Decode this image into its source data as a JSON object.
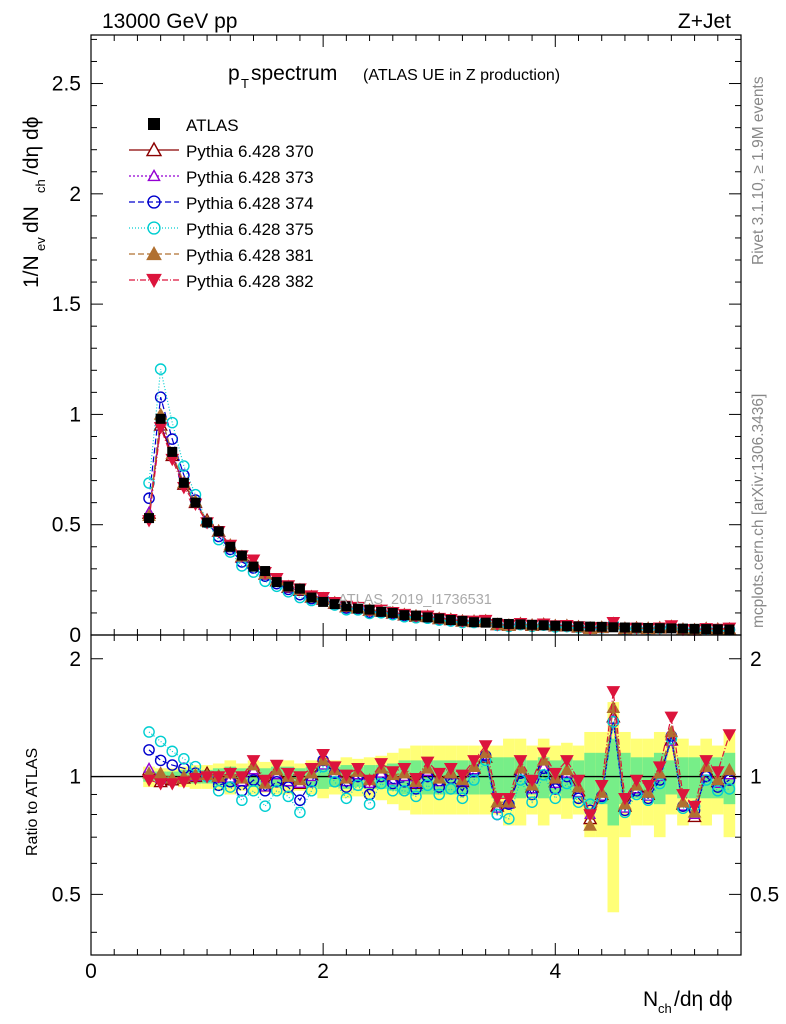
{
  "header": {
    "energy": "13000 GeV pp",
    "process": "Z+Jet"
  },
  "side": {
    "rivet": "Rivet 3.1.10, ≥ 1.9M events",
    "mcplots": "mcplots.cern.ch [arXiv:1306.3436]"
  },
  "chart_data": {
    "type": "scatter",
    "title_main": "p",
    "title_sub": "T",
    "title_rest": " spectrum",
    "title_note": "(ATLAS UE in Z production)",
    "watermark": "ATLAS_2019_I1736531",
    "xlabel": "N",
    "xlabel_sub": "ch",
    "xlabel_rest": "/dη dϕ",
    "ylabel": "1/N",
    "ylabel_sub1": "ev",
    "ylabel_mid": " dN",
    "ylabel_sub2": "ch",
    "ylabel_rest": "/dη dϕ",
    "ratio_ylabel": "Ratio to ATLAS",
    "xlim": [
      0,
      5.6
    ],
    "ylim": [
      0,
      2.72
    ],
    "ratio_ylim": [
      0.35,
      2.3
    ],
    "xticks": [
      {
        "v": 0,
        "label": "0"
      },
      {
        "v": 2,
        "label": "2"
      },
      {
        "v": 4,
        "label": "4"
      }
    ],
    "yticks": [
      {
        "v": 0,
        "label": "0"
      },
      {
        "v": 0.5,
        "label": "0.5"
      },
      {
        "v": 1,
        "label": "1"
      },
      {
        "v": 1.5,
        "label": "1.5"
      },
      {
        "v": 2,
        "label": "2"
      },
      {
        "v": 2.5,
        "label": "2.5"
      }
    ],
    "ratio_yticks": [
      {
        "v": 0.5,
        "label": "0.5"
      },
      {
        "v": 1,
        "label": "1"
      },
      {
        "v": 2,
        "label": "2"
      }
    ],
    "x": [
      0.5,
      0.6,
      0.7,
      0.8,
      0.9,
      1.0,
      1.1,
      1.2,
      1.3,
      1.4,
      1.5,
      1.6,
      1.7,
      1.8,
      1.9,
      2.0,
      2.1,
      2.2,
      2.3,
      2.4,
      2.5,
      2.6,
      2.7,
      2.8,
      2.9,
      3.0,
      3.1,
      3.2,
      3.3,
      3.4,
      3.5,
      3.6,
      3.7,
      3.8,
      3.9,
      4.0,
      4.1,
      4.2,
      4.3,
      4.4,
      4.5,
      4.6,
      4.7,
      4.8,
      4.9,
      5.0,
      5.1,
      5.2,
      5.3,
      5.4,
      5.5
    ],
    "data": {
      "label": "ATLAS",
      "values": [
        0.53,
        0.98,
        0.83,
        0.69,
        0.6,
        0.51,
        0.47,
        0.4,
        0.36,
        0.31,
        0.29,
        0.24,
        0.22,
        0.21,
        0.17,
        0.15,
        0.14,
        0.13,
        0.12,
        0.115,
        0.105,
        0.1,
        0.09,
        0.088,
        0.08,
        0.075,
        0.068,
        0.064,
        0.058,
        0.056,
        0.055,
        0.05,
        0.048,
        0.046,
        0.044,
        0.042,
        0.04,
        0.039,
        0.038,
        0.037,
        0.035,
        0.034,
        0.033,
        0.032,
        0.031,
        0.03,
        0.029,
        0.028,
        0.027,
        0.026,
        0.025
      ],
      "band_yellow": [
        0.06,
        0.05,
        0.05,
        0.06,
        0.07,
        0.07,
        0.08,
        0.1,
        0.08,
        0.1,
        0.09,
        0.1,
        0.1,
        0.08,
        0.1,
        0.12,
        0.1,
        0.12,
        0.11,
        0.12,
        0.13,
        0.15,
        0.18,
        0.2,
        0.2,
        0.2,
        0.2,
        0.2,
        0.2,
        0.2,
        0.2,
        0.25,
        0.25,
        0.2,
        0.25,
        0.2,
        0.22,
        0.2,
        0.3,
        0.3,
        0.55,
        0.3,
        0.25,
        0.25,
        0.3,
        0.2,
        0.25,
        0.2,
        0.25,
        0.2,
        0.3
      ],
      "band_green": [
        0.03,
        0.03,
        0.03,
        0.04,
        0.04,
        0.04,
        0.05,
        0.06,
        0.05,
        0.06,
        0.05,
        0.06,
        0.06,
        0.05,
        0.06,
        0.07,
        0.06,
        0.07,
        0.06,
        0.07,
        0.07,
        0.08,
        0.1,
        0.1,
        0.1,
        0.1,
        0.1,
        0.1,
        0.1,
        0.1,
        0.12,
        0.12,
        0.12,
        0.1,
        0.12,
        0.1,
        0.12,
        0.1,
        0.15,
        0.15,
        0.25,
        0.15,
        0.12,
        0.12,
        0.15,
        0.1,
        0.12,
        0.12,
        0.12,
        0.12,
        0.15
      ]
    },
    "series": [
      {
        "name": "Pythia 6.428 370",
        "color": "#8b0000",
        "dash": "",
        "marker": "tri-open",
        "ratio": [
          1.04,
          0.97,
          0.98,
          0.99,
          1.0,
          1.02,
          1.0,
          1.0,
          0.98,
          1.05,
          0.95,
          1.02,
          0.98,
          0.96,
          1.01,
          1.08,
          1.03,
          0.98,
          1.02,
          0.97,
          1.03,
          0.99,
          1.01,
          0.96,
          1.04,
          0.98,
          1.02,
          0.97,
          1.05,
          1.12,
          0.84,
          0.86,
          1.04,
          0.94,
          1.07,
          0.97,
          1.03,
          0.92,
          0.78,
          0.9,
          1.42,
          0.84,
          0.94,
          0.9,
          1.01,
          1.24,
          0.85,
          0.79,
          1.04,
          0.97,
          1.02
        ]
      },
      {
        "name": "Pythia 6.428 373",
        "color": "#9400d3",
        "dash": "2,2",
        "marker": "tri-open-small",
        "ratio": [
          1.05,
          0.99,
          0.99,
          1.0,
          1.0,
          1.01,
          0.99,
          0.99,
          0.97,
          1.04,
          0.94,
          1.01,
          0.97,
          0.96,
          1.0,
          1.07,
          1.02,
          0.97,
          1.01,
          0.96,
          1.02,
          0.98,
          1.0,
          0.96,
          1.03,
          0.97,
          1.01,
          0.97,
          1.04,
          1.13,
          0.83,
          0.85,
          1.03,
          0.93,
          1.06,
          0.96,
          1.02,
          0.91,
          0.8,
          0.89,
          1.4,
          0.83,
          0.93,
          0.89,
          1.0,
          1.23,
          0.84,
          0.8,
          1.03,
          0.96,
          1.01
        ]
      },
      {
        "name": "Pythia 6.428 374",
        "color": "#0000cd",
        "dash": "6,3",
        "marker": "circle-open",
        "ratio": [
          1.17,
          1.1,
          1.07,
          1.05,
          1.02,
          1.0,
          0.95,
          0.97,
          0.92,
          0.98,
          0.92,
          0.97,
          0.94,
          0.87,
          0.97,
          1.1,
          1.02,
          0.94,
          1.0,
          0.9,
          1.0,
          0.96,
          0.97,
          0.93,
          1.0,
          0.94,
          0.99,
          0.92,
          1.03,
          1.13,
          0.8,
          0.85,
          1.02,
          0.9,
          1.05,
          0.93,
          1.0,
          0.88,
          0.82,
          0.89,
          1.38,
          0.82,
          0.92,
          0.88,
          0.98,
          1.27,
          0.84,
          0.82,
          1.0,
          0.94,
          0.98
        ]
      },
      {
        "name": "Pythia 6.428 375",
        "color": "#00ced1",
        "dash": "1,2",
        "marker": "circle-open",
        "ratio": [
          1.3,
          1.23,
          1.16,
          1.11,
          1.06,
          1.0,
          0.92,
          0.94,
          0.87,
          0.92,
          0.84,
          0.92,
          0.89,
          0.81,
          0.92,
          1.06,
          0.97,
          0.88,
          0.95,
          0.85,
          0.96,
          0.92,
          0.92,
          0.89,
          0.95,
          0.9,
          0.93,
          0.88,
          0.98,
          1.1,
          0.8,
          0.78,
          0.98,
          0.86,
          1.01,
          0.88,
          0.96,
          0.86,
          0.85,
          0.88,
          1.38,
          0.81,
          0.9,
          0.87,
          0.96,
          1.25,
          0.83,
          0.84,
          0.98,
          0.92,
          0.93
        ]
      },
      {
        "name": "Pythia 6.428 381",
        "color": "#b07030",
        "dash": "6,3",
        "marker": "tri-solid",
        "ratio": [
          1.02,
          1.02,
          0.99,
          1.0,
          1.01,
          1.01,
          1.0,
          1.02,
          0.99,
          1.07,
          0.96,
          1.04,
          1.0,
          0.98,
          1.02,
          1.1,
          1.04,
          0.99,
          1.03,
          0.98,
          1.05,
          1.01,
          1.02,
          0.97,
          1.05,
          0.99,
          1.02,
          0.98,
          1.06,
          1.15,
          0.86,
          0.86,
          1.05,
          0.95,
          1.1,
          0.99,
          1.04,
          0.94,
          0.75,
          0.91,
          1.5,
          0.85,
          0.95,
          0.91,
          1.02,
          1.3,
          0.86,
          0.81,
          1.06,
          0.98,
          1.04
        ]
      },
      {
        "name": "Pythia 6.428 382",
        "color": "#dc143c",
        "dash": "6,2,1,2",
        "marker": "tri-down-solid",
        "ratio": [
          0.98,
          0.96,
          0.96,
          0.97,
          0.99,
          1.0,
          1.0,
          1.02,
          1.0,
          1.1,
          0.98,
          1.07,
          1.02,
          1.0,
          1.05,
          1.14,
          1.06,
          1.01,
          1.05,
          0.98,
          1.08,
          1.03,
          1.05,
          0.99,
          1.09,
          1.02,
          1.05,
          1.01,
          1.1,
          1.2,
          0.88,
          0.88,
          1.1,
          0.98,
          1.15,
          1.02,
          1.1,
          0.98,
          0.8,
          0.95,
          1.65,
          0.88,
          0.98,
          0.95,
          1.06,
          1.42,
          0.9,
          0.84,
          1.1,
          1.03,
          1.28
        ]
      }
    ]
  }
}
